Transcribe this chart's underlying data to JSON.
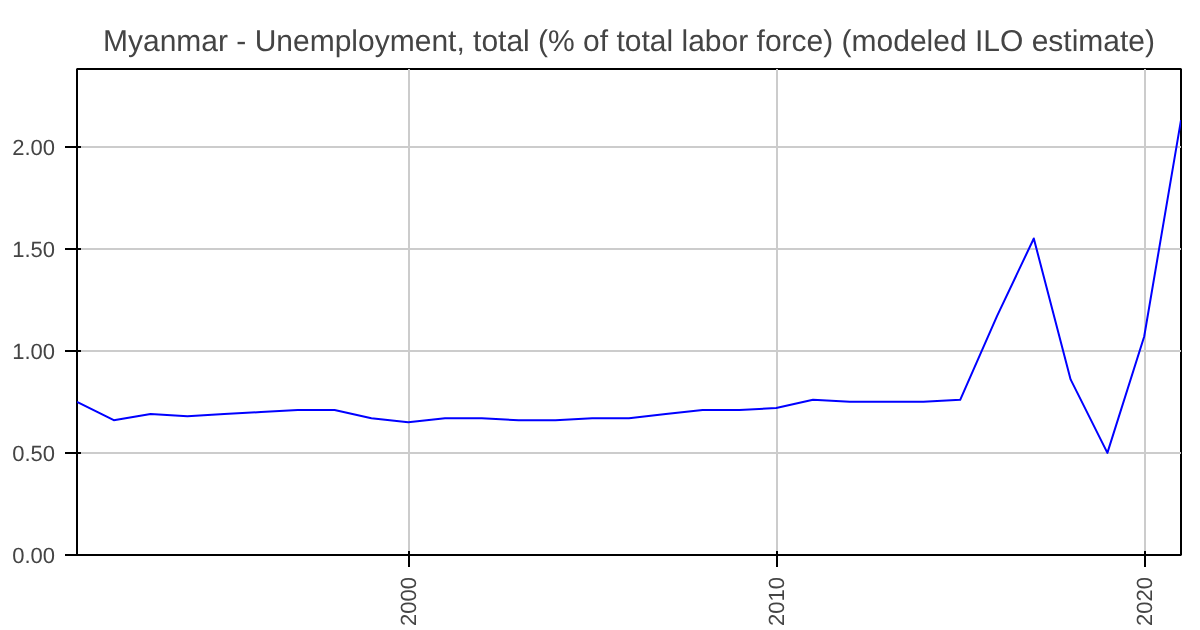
{
  "chart_data": {
    "type": "line",
    "title": "Myanmar - Unemployment, total (% of total labor force) (modeled ILO estimate)",
    "x": [
      1991,
      1992,
      1993,
      1994,
      1995,
      1996,
      1997,
      1998,
      1999,
      2000,
      2001,
      2002,
      2003,
      2004,
      2005,
      2006,
      2007,
      2008,
      2009,
      2010,
      2011,
      2012,
      2013,
      2014,
      2015,
      2016,
      2017,
      2018,
      2019,
      2020,
      2021
    ],
    "series": [
      {
        "color": "#0000ff",
        "values": [
          0.75,
          0.66,
          0.69,
          0.68,
          0.69,
          0.7,
          0.71,
          0.71,
          0.67,
          0.65,
          0.67,
          0.67,
          0.66,
          0.66,
          0.67,
          0.67,
          0.69,
          0.71,
          0.71,
          0.72,
          0.76,
          0.75,
          0.75,
          0.75,
          0.76,
          1.17,
          1.55,
          0.86,
          0.5,
          1.07,
          2.13
        ]
      }
    ],
    "xlim": [
      1991,
      2021
    ],
    "ylim": [
      0,
      2.38
    ],
    "xticks": [
      2000,
      2010,
      2020
    ],
    "yticks": [
      {
        "value": 0,
        "label": "0.00"
      },
      {
        "value": 0.5,
        "label": "0.50"
      },
      {
        "value": 1,
        "label": "1.00"
      },
      {
        "value": 1.5,
        "label": "1.50"
      },
      {
        "value": 2,
        "label": "2.00"
      }
    ],
    "grid": true
  }
}
